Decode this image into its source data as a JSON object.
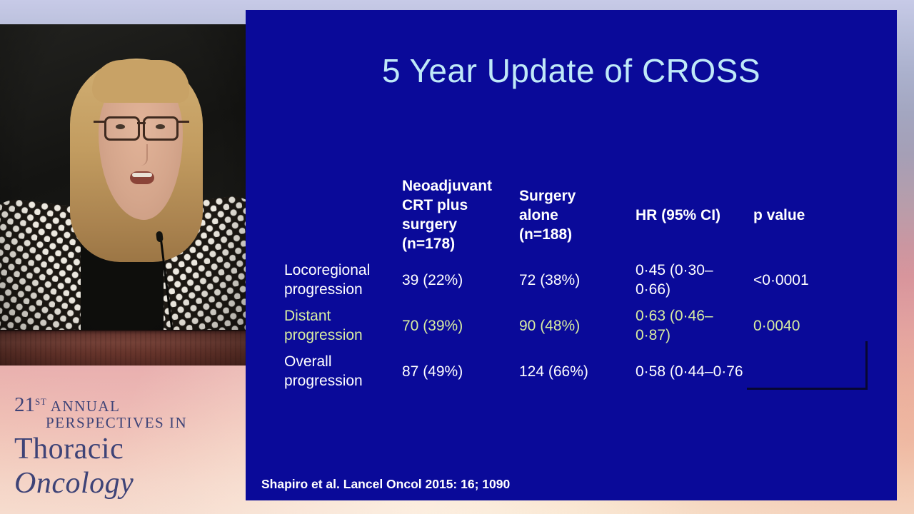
{
  "conference_logo": {
    "edition": "21",
    "edition_sup": "ST",
    "annual": "ANNUAL",
    "line2": "PERSPECTIVES IN",
    "title_regular": "Thoracic ",
    "title_italic": "Oncology",
    "text_color": "#3e4377"
  },
  "slide": {
    "title": "5 Year Update of CROSS",
    "citation": "Shapiro et al. Lancel Oncol 2015: 16; 1090",
    "colors": {
      "background": "#0a0a99",
      "title_text": "#bfe9f8",
      "body_text": "#ffffff",
      "highlight_row_text": "#d8eda1"
    },
    "table": {
      "column_headers": [
        "Neoadjuvant CRT plus surgery (n=178)",
        "Surgery alone (n=188)",
        "HR (95% CI)",
        "p value"
      ],
      "rows": [
        {
          "label": "Locoregional progression",
          "crt_surgery": "39 (22%)",
          "surgery_alone": "72 (38%)",
          "hr": "0·45 (0·30–0·66)",
          "p_value": "<0·0001"
        },
        {
          "label": "Distant progression",
          "crt_surgery": "70 (39%)",
          "surgery_alone": "90 (48%)",
          "hr": "0·63 (0·46–0·87)",
          "p_value": "0·0040"
        },
        {
          "label": "Overall progression",
          "crt_surgery": "87 (49%)",
          "surgery_alone": "124 (66%)",
          "hr": "0·58 (0·44–0·76",
          "p_value": ""
        }
      ]
    }
  }
}
